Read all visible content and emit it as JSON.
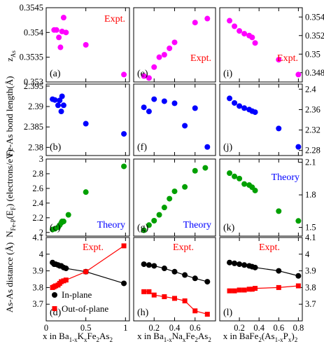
{
  "colors": {
    "magenta": "#ff00ff",
    "blue": "#0000ff",
    "green": "#00a000",
    "black": "#000000",
    "red": "#ff0000",
    "note_red": "#ff0000",
    "note_blue": "#0000ff"
  },
  "chart_data": [
    {
      "type": "scatter",
      "panel": "(a)",
      "row": 0,
      "col": 0,
      "note": "Expt.",
      "note_color": "red",
      "ylim": [
        0.353,
        0.3545
      ],
      "series": [
        {
          "color": "magenta",
          "x": [
            0.1,
            0.13,
            0.16,
            0.18,
            0.2,
            0.22,
            0.25,
            0.5,
            0.98
          ],
          "y": [
            0.35405,
            0.35405,
            0.3539,
            0.3537,
            0.35402,
            0.3543,
            0.354,
            0.35375,
            0.35315
          ]
        }
      ]
    },
    {
      "type": "scatter",
      "panel": "(e)",
      "row": 0,
      "col": 1,
      "note": "Expt.",
      "note_color": "red",
      "ylim": [
        0.353,
        0.3545
      ],
      "series": [
        {
          "color": "magenta",
          "x": [
            0.1,
            0.15,
            0.2,
            0.25,
            0.3,
            0.35,
            0.4,
            0.6,
            0.72
          ],
          "y": [
            0.35312,
            0.35308,
            0.3533,
            0.3535,
            0.35355,
            0.35368,
            0.3538,
            0.3542,
            0.35428
          ]
        }
      ]
    },
    {
      "type": "scatter",
      "panel": "(i)",
      "row": 0,
      "col": 2,
      "note": "Expt.",
      "note_color": "red",
      "ylim": [
        0.347,
        0.355
      ],
      "yticks_right": [
        "0.354",
        "0.352",
        "0.35",
        "0.348"
      ],
      "ytick_values_right": [
        0.354,
        0.352,
        0.35,
        0.348
      ],
      "series": [
        {
          "color": "magenta",
          "x": [
            0.1,
            0.15,
            0.2,
            0.25,
            0.3,
            0.33,
            0.36,
            0.6,
            0.8
          ],
          "y": [
            0.3536,
            0.353,
            0.3525,
            0.3522,
            0.352,
            0.3518,
            0.3512,
            0.3494,
            0.3478
          ]
        }
      ]
    },
    {
      "type": "scatter",
      "panel": "(b)",
      "row": 1,
      "col": 0,
      "ylim": [
        2.378,
        2.3955
      ],
      "series": [
        {
          "color": "blue",
          "x": [
            0.08,
            0.11,
            0.15,
            0.17,
            0.19,
            0.2,
            0.22,
            0.5,
            0.98
          ],
          "y": [
            2.3918,
            2.3916,
            2.3903,
            2.3915,
            2.3888,
            2.3925,
            2.3903,
            2.3858,
            2.3833
          ]
        }
      ]
    },
    {
      "type": "scatter",
      "panel": "(f)",
      "row": 1,
      "col": 1,
      "ylim": [
        2.378,
        2.3955
      ],
      "series": [
        {
          "color": "blue",
          "x": [
            0.1,
            0.15,
            0.2,
            0.3,
            0.4,
            0.5,
            0.6,
            0.72
          ],
          "y": [
            2.3898,
            2.3888,
            2.3918,
            2.3913,
            2.3908,
            2.3853,
            2.3896,
            2.3801
          ]
        }
      ]
    },
    {
      "type": "scatter",
      "panel": "(j)",
      "row": 1,
      "col": 2,
      "ylim": [
        2.27,
        2.41
      ],
      "yticks_right": [
        "2.4",
        "2.36",
        "2.32",
        "2.28"
      ],
      "ytick_values_right": [
        2.4,
        2.36,
        2.32,
        2.28
      ],
      "series": [
        {
          "color": "blue",
          "x": [
            0.1,
            0.15,
            0.2,
            0.25,
            0.3,
            0.33,
            0.36,
            0.6,
            0.8
          ],
          "y": [
            2.382,
            2.373,
            2.367,
            2.363,
            2.36,
            2.357,
            2.355,
            2.323,
            2.287
          ]
        }
      ]
    },
    {
      "type": "scatter",
      "panel": "(c)",
      "row": 2,
      "col": 0,
      "note": "Theory",
      "note_color": "blue",
      "ylim": [
        1.95,
        3.0
      ],
      "series": [
        {
          "color": "green",
          "x": [
            0.08,
            0.11,
            0.15,
            0.17,
            0.19,
            0.2,
            0.22,
            0.28,
            0.5,
            0.98
          ],
          "y": [
            2.04,
            2.05,
            2.07,
            2.1,
            2.13,
            2.15,
            2.15,
            2.24,
            2.55,
            2.9
          ]
        }
      ]
    },
    {
      "type": "scatter",
      "panel": "(g)",
      "row": 2,
      "col": 1,
      "note": "Theory",
      "note_color": "blue",
      "ylim": [
        1.95,
        3.0
      ],
      "series": [
        {
          "color": "green",
          "x": [
            0.1,
            0.15,
            0.2,
            0.25,
            0.3,
            0.35,
            0.4,
            0.5,
            0.6,
            0.7
          ],
          "y": [
            2.03,
            2.1,
            2.16,
            2.24,
            2.34,
            2.46,
            2.56,
            2.62,
            2.84,
            2.88
          ]
        }
      ]
    },
    {
      "type": "scatter",
      "panel": "(k)",
      "row": 2,
      "col": 2,
      "note": "Theory",
      "note_color": "blue",
      "ylim": [
        1.42,
        2.13
      ],
      "yticks_right": [
        "2.1",
        "1.8",
        "1.5"
      ],
      "ytick_values_right": [
        2.1,
        1.8,
        1.5
      ],
      "series": [
        {
          "color": "green",
          "x": [
            0.1,
            0.15,
            0.2,
            0.25,
            0.3,
            0.33,
            0.36,
            0.6,
            0.8
          ],
          "y": [
            2.0,
            1.97,
            1.95,
            1.9,
            1.89,
            1.87,
            1.84,
            1.65,
            1.56
          ]
        }
      ]
    },
    {
      "type": "line",
      "panel": "(d)",
      "row": 3,
      "col": 0,
      "note": "Expt.",
      "note_color": "red",
      "ylim": [
        3.6,
        4.1
      ],
      "series": [
        {
          "name": "In-plane",
          "color": "black",
          "marker": "circle",
          "x": [
            0.08,
            0.1,
            0.12,
            0.15,
            0.17,
            0.19,
            0.22,
            0.25,
            0.5,
            0.98
          ],
          "y": [
            3.95,
            3.94,
            3.94,
            3.935,
            3.93,
            3.93,
            3.92,
            3.915,
            3.895,
            3.825
          ]
        },
        {
          "name": "Out-of-plane",
          "color": "red",
          "marker": "square",
          "x": [
            0.08,
            0.1,
            0.12,
            0.15,
            0.17,
            0.19,
            0.22,
            0.25,
            0.5,
            0.98
          ],
          "y": [
            3.8,
            3.805,
            3.81,
            3.815,
            3.825,
            3.835,
            3.84,
            3.845,
            3.895,
            4.05
          ]
        }
      ]
    },
    {
      "type": "line",
      "panel": "(h)",
      "row": 3,
      "col": 1,
      "note": "Expt.",
      "note_color": "red",
      "ylim": [
        3.6,
        4.1
      ],
      "series": [
        {
          "name": "In-plane",
          "color": "black",
          "marker": "circle",
          "x": [
            0.1,
            0.15,
            0.2,
            0.3,
            0.4,
            0.5,
            0.6,
            0.72
          ],
          "y": [
            3.94,
            3.935,
            3.93,
            3.915,
            3.895,
            3.875,
            3.855,
            3.835
          ]
        },
        {
          "name": "Out-of-plane",
          "color": "red",
          "marker": "square",
          "x": [
            0.1,
            0.15,
            0.2,
            0.3,
            0.4,
            0.5,
            0.6,
            0.72
          ],
          "y": [
            3.775,
            3.775,
            3.755,
            3.745,
            3.735,
            3.72,
            3.66,
            3.64
          ]
        }
      ]
    },
    {
      "type": "line",
      "panel": "(l)",
      "row": 3,
      "col": 2,
      "note": "Expt.",
      "note_color": "red",
      "ylim": [
        3.6,
        4.1
      ],
      "yticks_right": [
        "4.1",
        "4",
        "3.9",
        "3.8",
        "3.7"
      ],
      "ytick_values_right": [
        4.1,
        4.0,
        3.9,
        3.8,
        3.7
      ],
      "series": [
        {
          "name": "In-plane",
          "color": "black",
          "marker": "circle",
          "x": [
            0.1,
            0.15,
            0.2,
            0.25,
            0.3,
            0.33,
            0.36,
            0.6,
            0.8
          ],
          "y": [
            3.95,
            3.945,
            3.94,
            3.935,
            3.93,
            3.925,
            3.92,
            3.9,
            3.87
          ]
        },
        {
          "name": "Out-of-plane",
          "color": "red",
          "marker": "square",
          "x": [
            0.1,
            0.15,
            0.2,
            0.25,
            0.3,
            0.33,
            0.36,
            0.6,
            0.8
          ],
          "y": [
            3.78,
            3.78,
            3.785,
            3.785,
            3.79,
            3.79,
            3.795,
            3.8,
            3.81
          ]
        }
      ]
    }
  ],
  "axes": {
    "left_ticks": [
      {
        "labels": [
          "0.3545",
          "0.354",
          "0.3535",
          "0.353"
        ],
        "values": [
          0.3545,
          0.354,
          0.3535,
          0.353
        ]
      },
      {
        "labels": [
          "2.395",
          "2.39",
          "2.385",
          "2.38"
        ],
        "values": [
          2.395,
          2.39,
          2.385,
          2.38
        ]
      },
      {
        "labels": [
          "3",
          "2.8",
          "2.6",
          "2.4",
          "2.2",
          "2"
        ],
        "values": [
          3.0,
          2.8,
          2.6,
          2.4,
          2.2,
          2.0
        ]
      },
      {
        "labels": [
          "4.1",
          "4",
          "3.9",
          "3.8",
          "3.7"
        ],
        "values": [
          4.1,
          4.0,
          3.9,
          3.8,
          3.7
        ]
      }
    ],
    "x_ticks": [
      {
        "labels": [
          "0",
          "0.5",
          "1"
        ],
        "values": [
          0,
          0.5,
          1.0
        ],
        "xlim": [
          0,
          1.05
        ]
      },
      {
        "labels": [
          "0.2",
          "0.4",
          "0.6"
        ],
        "values": [
          0.2,
          0.4,
          0.6
        ],
        "xlim": [
          0,
          0.8
        ]
      },
      {
        "labels": [
          "0.2",
          "0.4",
          "0.6",
          "0.8"
        ],
        "values": [
          0.2,
          0.4,
          0.6,
          0.8
        ],
        "xlim": [
          0,
          0.84
        ]
      }
    ],
    "ylabels": [
      "z",
      "As",
      "Fe-As bond length(Å)",
      "N",
      "Fe-P",
      "(E",
      "F",
      ") (electrons/eV)",
      "As-As distance (Å)"
    ],
    "xlabels": {
      "col0": [
        "x in Ba",
        "1-x",
        "K",
        "x",
        "Fe",
        "2",
        "As",
        "2"
      ],
      "col1": [
        "x in Ba",
        "1-x",
        "Na",
        "x",
        "Fe",
        "2",
        "As",
        "2"
      ],
      "col2": [
        "x in BaFe",
        "2",
        "(As",
        "1-x",
        "P",
        "x",
        ")",
        "2"
      ]
    }
  },
  "legend": {
    "items": [
      "In-plane",
      "Out-of-plane"
    ],
    "location": "panel (d), bottom"
  }
}
